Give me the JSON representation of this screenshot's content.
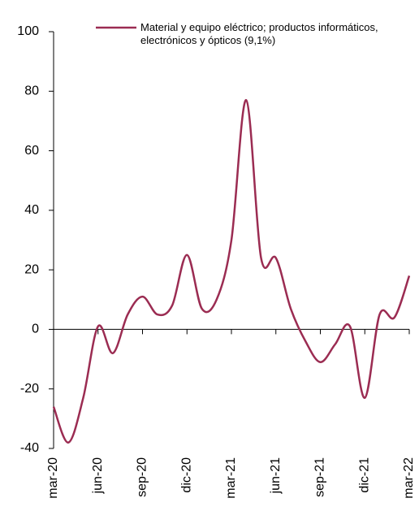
{
  "chart_data": {
    "type": "line",
    "categories": [
      "mar-20",
      null,
      null,
      "jun-20",
      null,
      null,
      "sep-20",
      null,
      null,
      "dic-20",
      null,
      null,
      "mar-21",
      null,
      null,
      "jun-21",
      null,
      null,
      "sep-21",
      null,
      null,
      "dic-21",
      null,
      null,
      "mar-22"
    ],
    "series": [
      {
        "name": "Material y equipo eléctrico; productos informáticos, electrónicos y ópticos (9,1%)",
        "color": "#9b2c52",
        "values": [
          -26,
          -38,
          -23,
          1,
          -8,
          5,
          11,
          5,
          8,
          25,
          7,
          10,
          30,
          77,
          24,
          24,
          7,
          -4,
          -11,
          -5,
          1,
          -23,
          5,
          4,
          18
        ]
      }
    ],
    "ylim": [
      -40,
      100
    ],
    "yticks": [
      -40,
      -20,
      0,
      20,
      40,
      60,
      80,
      100
    ],
    "legend": "top-right"
  }
}
